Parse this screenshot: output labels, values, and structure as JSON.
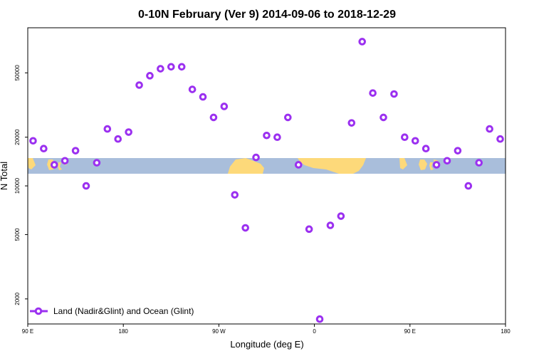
{
  "chart_data": {
    "type": "scatter",
    "title": "0-10N February (Ver 9)   2014-09-06 to 2018-12-29",
    "xlabel": "Longitude (deg E)",
    "ylabel": "N Total",
    "x_tick_labels": [
      "90 E",
      "180",
      "90 W",
      "0",
      "90 E",
      "180"
    ],
    "x_range_deg": [
      90,
      540
    ],
    "x_ticks_deg": [
      90,
      180,
      270,
      360,
      450,
      540
    ],
    "y_scale": "log",
    "y_range": [
      1400,
      95000
    ],
    "y_ticks": [
      2000,
      5000,
      10000,
      20000,
      50000
    ],
    "y_tick_labels": [
      "2000",
      "5000",
      "10000",
      "20000",
      "50000"
    ],
    "map_band_latitude": "0-10N",
    "ocean_color": "#a9bedb",
    "land_color": "#fdd97a",
    "marker_color": "#9b30f0",
    "legend_position": "bottom-left",
    "series": [
      {
        "name": "Land (Nadir&Glint) and Ocean (Glint)",
        "x": [
          95,
          105,
          115,
          125,
          135,
          145,
          155,
          165,
          175,
          185,
          195,
          205,
          215,
          225,
          235,
          245,
          255,
          265,
          275,
          285,
          295,
          305,
          315,
          325,
          335,
          345,
          355,
          365,
          375,
          385,
          395,
          405,
          415,
          425,
          435,
          445,
          455,
          465,
          475,
          485,
          495,
          505,
          515,
          525,
          535
        ],
        "y": [
          19000,
          17000,
          13500,
          14300,
          16500,
          10000,
          13900,
          22500,
          19500,
          21500,
          42000,
          48000,
          53000,
          54500,
          54500,
          39500,
          35500,
          26500,
          31000,
          8800,
          5500,
          15000,
          20500,
          20000,
          26500,
          13500,
          5400,
          1500,
          5700,
          6500,
          24500,
          78000,
          37500,
          26500,
          37000,
          20000,
          19000,
          17000,
          13500,
          14300,
          16500,
          10000,
          13900,
          22500,
          19500
        ]
      }
    ]
  }
}
